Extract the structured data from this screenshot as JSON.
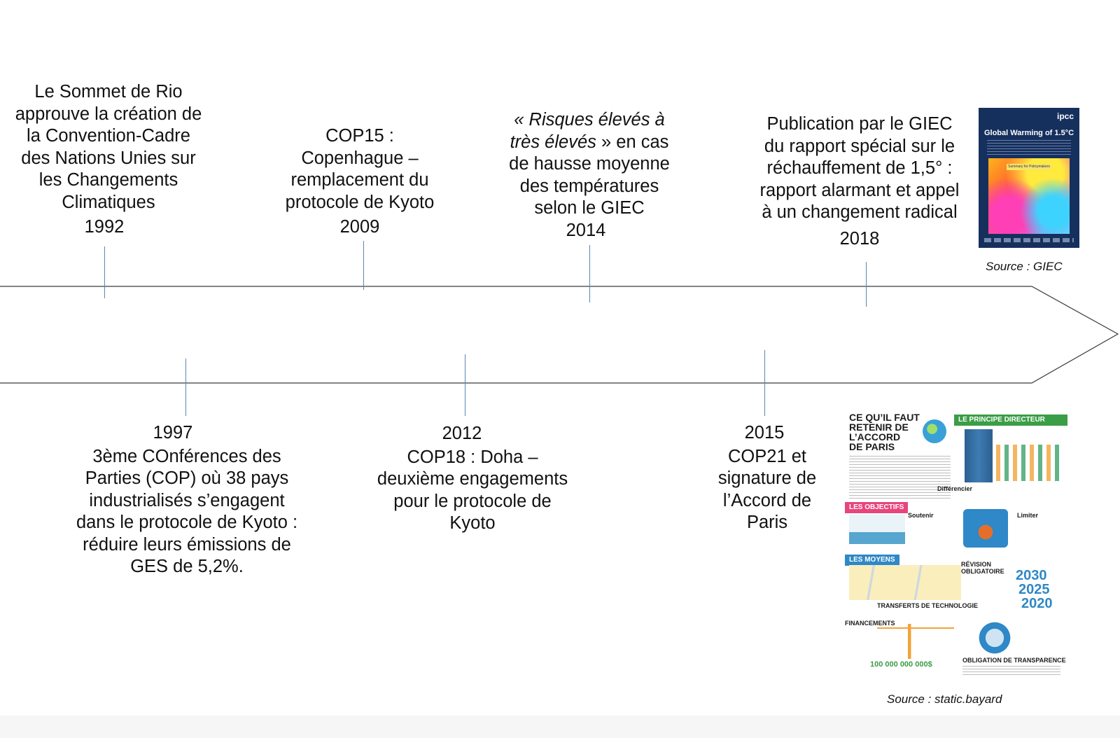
{
  "events": [
    {
      "id": "rio",
      "lines": [
        "Le Sommet de Rio",
        "approuve la création de",
        "la Convention-Cadre",
        "des Nations Unies sur",
        "les Changements",
        "Climatiques"
      ],
      "year": "1992"
    },
    {
      "id": "kyoto",
      "year": "1997",
      "lines": [
        "3ème COnférences des",
        "Parties (COP) où 38 pays",
        "industrialisés s’engagent",
        "dans le protocole de Kyoto :",
        "réduire leurs émissions de",
        "GES de 5,2%."
      ]
    },
    {
      "id": "cop15",
      "lines": [
        "COP15 :",
        "Copenhague –",
        "remplacement du",
        "protocole de Kyoto"
      ],
      "year": "2009"
    },
    {
      "id": "cop18",
      "year": "2012",
      "lines": [
        "COP18 : Doha –",
        "deuxième engagements",
        "pour le protocole de",
        "Kyoto"
      ]
    },
    {
      "id": "giec2014",
      "italic": "« Risques élevés à",
      "italic2": "très élevés",
      "rest": " » en cas",
      "lines": [
        "de hausse moyenne",
        "des températures",
        "selon le GIEC"
      ],
      "year": "2014"
    },
    {
      "id": "cop21",
      "year": "2015",
      "lines": [
        "COP21 et",
        "signature de",
        "l’Accord de",
        "Paris"
      ]
    },
    {
      "id": "giec2018",
      "lines": [
        "Publication par le GIEC",
        "du rapport spécial sur le",
        "réchauffement de 1,5° :",
        "rapport alarmant et appel",
        "à un changement radical"
      ],
      "year": "2018"
    }
  ],
  "sources": {
    "giec": "Source : GIEC",
    "bayard": "Source : static.bayard"
  },
  "ipcc_cover": {
    "logo": "ipcc",
    "title": "Global Warming of 1.5°C",
    "tag": "Summary for Policymakers"
  },
  "infographic": {
    "title": [
      "CE QU’IL FAUT",
      "RETENIR DE",
      "L’ACCORD",
      "DE PARIS"
    ],
    "principe": "LE PRINCIPE DIRECTEUR",
    "objectifs": "LES OBJECTIFS",
    "moyens": "LES MOYENS",
    "differencier": "Différencier",
    "soutenir": "Soutenir",
    "limiter": "Limiter",
    "revision": "RÉVISION OBLIGATOIRE",
    "transferts": "TRANSFERTS DE TECHNOLOGIE",
    "financements": "FINANCEMENTS",
    "transparence": "OBLIGATION DE TRANSPARENCE",
    "years": [
      "2030",
      "2025",
      "2020"
    ],
    "money": "100 000 000 000$"
  },
  "colors": {
    "tick": "#5b86b0",
    "arrow_stroke": "#3a3a3a"
  }
}
